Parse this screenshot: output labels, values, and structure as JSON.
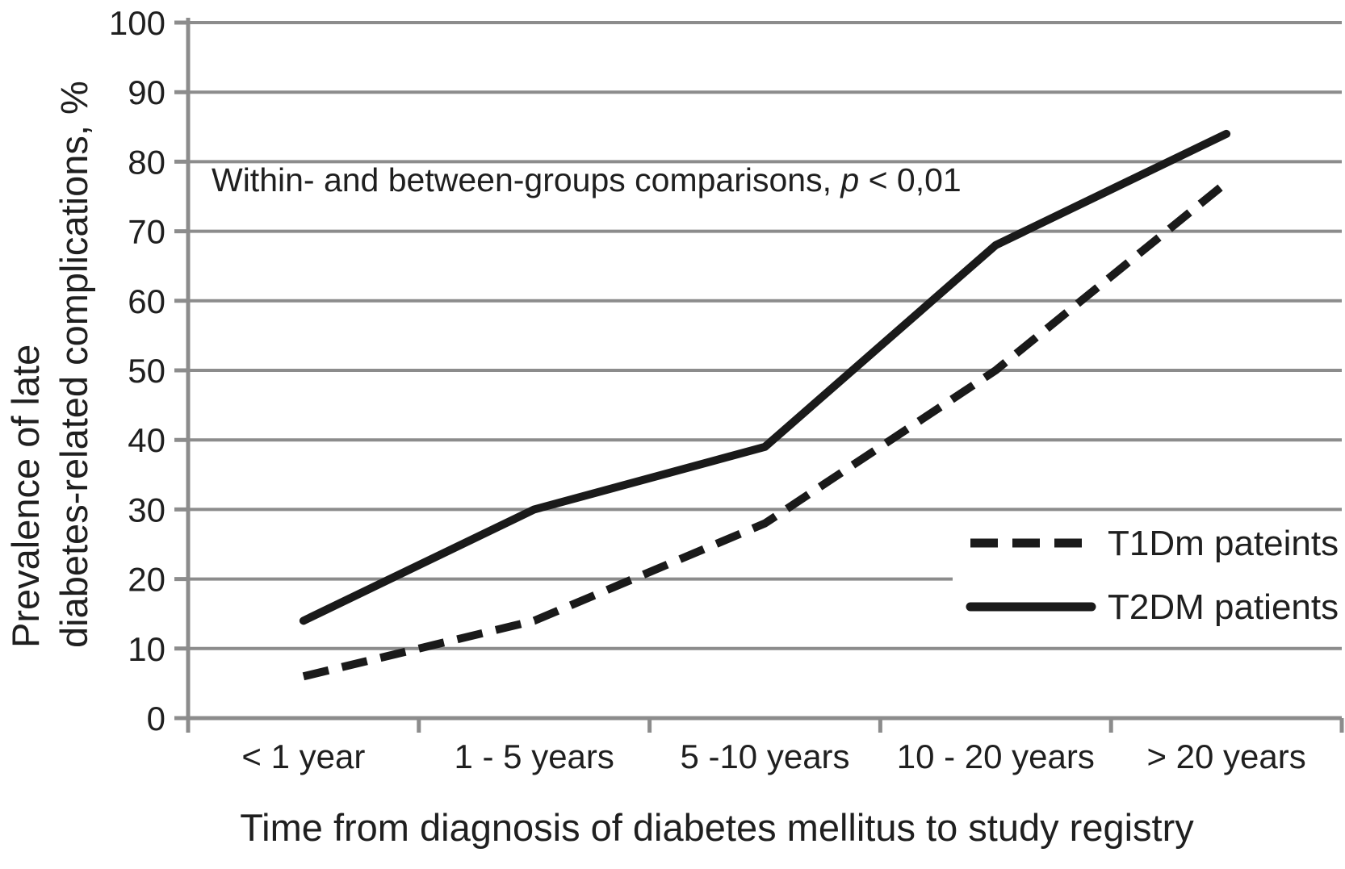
{
  "chart_data": {
    "type": "line",
    "categories": [
      "< 1 year",
      "1 - 5 years",
      "5 -10 years",
      "10 - 20 years",
      "> 20 years"
    ],
    "series": [
      {
        "name": "T1Dm pateints",
        "style": "dashed",
        "values": [
          6,
          14,
          28,
          50,
          77
        ]
      },
      {
        "name": "T2DM patients",
        "style": "solid",
        "values": [
          14,
          30,
          39,
          68,
          84
        ]
      }
    ],
    "title": "",
    "xlabel": "Time from diagnosis of diabetes mellitus to study registry",
    "ylabel_lines": [
      "Prevalence of late",
      "diabetes-related complications, %"
    ],
    "y_ticks": [
      0,
      10,
      20,
      30,
      40,
      50,
      60,
      70,
      80,
      90,
      100
    ],
    "ylim": [
      0,
      100
    ],
    "grid": true,
    "legend_position": "middle-right",
    "annotation": {
      "prefix": "Within- and between-groups comparisons, ",
      "p": "p",
      "suffix": " < 0,01"
    },
    "colors": {
      "line": "#1a1a1a",
      "grid": "#8c8c8c",
      "text": "#1f1f1f",
      "background": "#ffffff"
    }
  }
}
